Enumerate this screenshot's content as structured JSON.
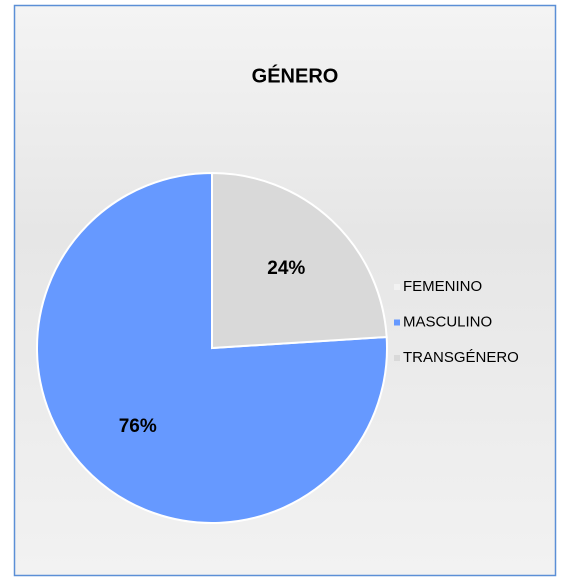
{
  "chart_data": {
    "type": "pie",
    "title": "GÉNERO",
    "categories": [
      "FEMENINO",
      "MASCULINO",
      "TRANSGÉNERO"
    ],
    "values": [
      0,
      76,
      24
    ],
    "value_labels": [
      null,
      "76%",
      "24%"
    ],
    "colors": [
      "#f2f2f2",
      "#6699ff",
      "#d9d9d9"
    ],
    "legend": "right"
  }
}
